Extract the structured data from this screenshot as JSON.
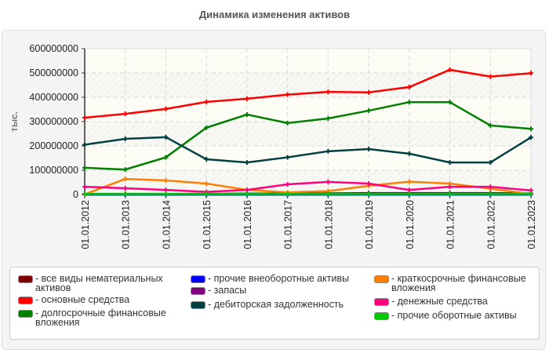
{
  "chart_data": {
    "type": "line",
    "title": "Динамика изменения активов",
    "ylabel": "тыс.",
    "xlabel": "",
    "ylim": [
      0,
      600000000
    ],
    "yticks": [
      "0",
      "100000000",
      "200000000",
      "300000000",
      "400000000",
      "500000000",
      "600000000"
    ],
    "grid": true,
    "legend_position": "bottom",
    "categories": [
      "01.01.2012",
      "01.01.2013",
      "01.01.2014",
      "01.01.2015",
      "01.01.2016",
      "01.01.2017",
      "01.01.2018",
      "01.01.2019",
      "01.01.2020",
      "01.01.2021",
      "01.01.2022",
      "01.01.2023"
    ],
    "series": [
      {
        "name": "все виды нематериальных активов",
        "color": "#800000",
        "values": [
          0,
          0,
          0,
          0,
          0,
          0,
          0,
          0,
          0,
          0,
          0,
          0
        ]
      },
      {
        "name": "основные средства",
        "color": "#ff0000",
        "values": [
          316000000,
          332000000,
          352000000,
          381000000,
          394000000,
          411000000,
          422000000,
          420000000,
          442000000,
          513000000,
          485000000,
          499000000
        ]
      },
      {
        "name": "долгосрочные финансовые вложения",
        "color": "#008000",
        "values": [
          110000000,
          103000000,
          153000000,
          275000000,
          329000000,
          294000000,
          313000000,
          345000000,
          380000000,
          380000000,
          284000000,
          270000000
        ]
      },
      {
        "name": "прочие внеоборотные активы",
        "color": "#0000ff",
        "values": [
          0,
          0,
          0,
          0,
          0,
          0,
          0,
          0,
          0,
          0,
          0,
          0
        ]
      },
      {
        "name": "запасы",
        "color": "#800080",
        "values": [
          3000000,
          3000000,
          3000000,
          3000000,
          4000000,
          4000000,
          5000000,
          6000000,
          6000000,
          6000000,
          6000000,
          5000000
        ]
      },
      {
        "name": "дебиторская задолженность",
        "color": "#004040",
        "values": [
          205000000,
          229000000,
          236000000,
          145000000,
          132000000,
          153000000,
          178000000,
          187000000,
          168000000,
          132000000,
          132000000,
          235000000
        ]
      },
      {
        "name": "краткосрочные финансовые вложения",
        "color": "#ff8000",
        "values": [
          1000000,
          64000000,
          58000000,
          45000000,
          19000000,
          9000000,
          14000000,
          36000000,
          53000000,
          45000000,
          24000000,
          2000000
        ]
      },
      {
        "name": "денежные средства",
        "color": "#ff0080",
        "values": [
          32000000,
          26000000,
          19000000,
          11000000,
          19000000,
          42000000,
          52000000,
          45000000,
          19000000,
          32000000,
          32000000,
          17000000
        ]
      },
      {
        "name": "прочие оборотные активы",
        "color": "#00cc00",
        "values": [
          2000000,
          2000000,
          2000000,
          2000000,
          2000000,
          2000000,
          2000000,
          2000000,
          2000000,
          2000000,
          2000000,
          2000000
        ]
      }
    ]
  }
}
